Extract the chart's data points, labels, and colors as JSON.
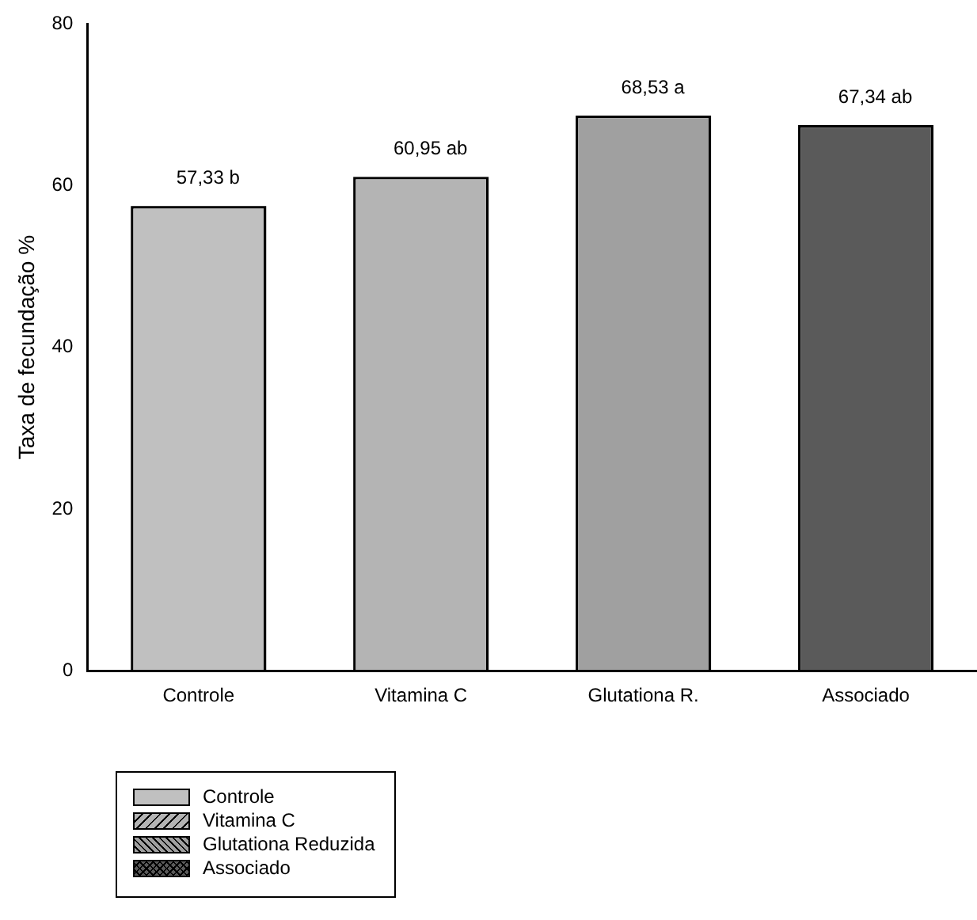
{
  "chart_data": {
    "type": "bar",
    "ylabel": "Taxa de fecundação %",
    "categories": [
      "Controle",
      "Vitamina C",
      "Glutationa R.",
      "Associado"
    ],
    "series": [
      {
        "name": "Controle",
        "color": "#c0c0c0",
        "values": [
          57.33,
          null,
          null,
          null
        ],
        "value_labels": [
          "57,33 b",
          null,
          null,
          null
        ]
      },
      {
        "name": "Vitamina C",
        "color": "#b4b4b4",
        "values": [
          null,
          60.95,
          null,
          null
        ],
        "value_labels": [
          null,
          "60,95 ab",
          null,
          null
        ]
      },
      {
        "name": "Glutationa Reduzida",
        "color": "#a0a0a0",
        "values": [
          null,
          null,
          68.53,
          null
        ],
        "value_labels": [
          null,
          null,
          "68,53 a",
          null
        ]
      },
      {
        "name": "Associado",
        "color": "#5a5a5a",
        "values": [
          null,
          null,
          null,
          67.34
        ],
        "value_labels": [
          null,
          null,
          null,
          "67,34 ab"
        ]
      }
    ],
    "ylim": [
      0,
      80
    ],
    "yticks": [
      0,
      20,
      40,
      60,
      80
    ],
    "grid": false,
    "legend": "bottom left"
  }
}
